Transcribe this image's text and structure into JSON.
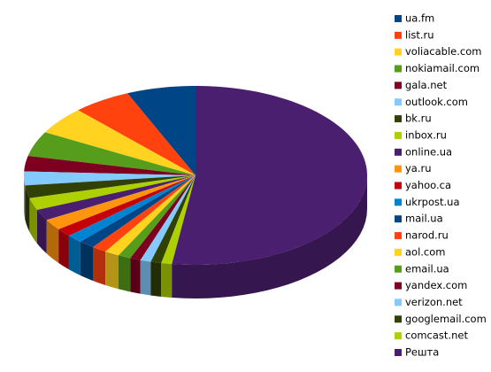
{
  "chart_data": {
    "type": "pie",
    "categories": [
      "ua.fm",
      "list.ru",
      "voliacable.com",
      "nokiamail.com",
      "gala.net",
      "outlook.com",
      "bk.ru",
      "inbox.ru",
      "online.ua",
      "ya.ru",
      "yahoo.ca",
      "ukrpost.ua",
      "mail.ua",
      "narod.ru",
      "aol.com",
      "email.ua",
      "yandex.com",
      "verizon.net",
      "googlemail.com",
      "comcast.net",
      "Решта"
    ],
    "values": [
      6.5,
      5.5,
      5,
      4.5,
      2.8,
      2.5,
      2.3,
      2.2,
      2,
      2,
      1.5,
      1.5,
      1.5,
      1.4,
      1.4,
      1.2,
      1,
      1,
      1,
      1,
      52.2
    ],
    "colors": [
      "#004586",
      "#ff420e",
      "#ffd320",
      "#579d1c",
      "#7e0021",
      "#83caff",
      "#314004",
      "#aecf00",
      "#4b1f6f",
      "#ff950e",
      "#c5000b",
      "#0084d1",
      "#004586",
      "#ff420e",
      "#ffd320",
      "#579d1c",
      "#7e0021",
      "#83caff",
      "#314004",
      "#aecf00",
      "#4b1f6f"
    ],
    "legend": "right"
  }
}
